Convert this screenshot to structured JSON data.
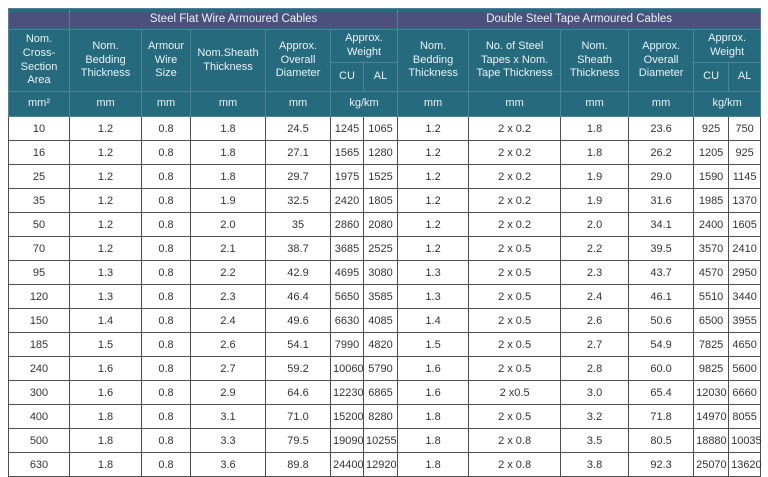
{
  "colors": {
    "teal": "#266a7e",
    "purple": "#4d4f7d",
    "hdr-border": "#4e8294",
    "hdr-text": "#e9f2f5",
    "body-border": "#4f4f4f",
    "body-text": "#333333",
    "page-bg": "#ffffff"
  },
  "table": {
    "groups": [
      {
        "title": "Steel Flat Wire Armoured Cables"
      },
      {
        "title": "Double Steel Tape Armoured Cables"
      }
    ],
    "columns": [
      "Nom. Cross-Section Area",
      "Nom. Bedding Thickness",
      "Armour Wire Size",
      "Nom.Sheath Thickness",
      "Approx. Overall Diameter",
      "Nom. Bedding Thickness",
      "No. of Steel Tapes x Nom. Tape Thickness",
      "Nom. Sheath Thickness",
      "Approx. Overall Diameter"
    ],
    "weight": {
      "label": "Approx. Weight",
      "cu": "CU",
      "al": "AL"
    },
    "units": [
      "mm²",
      "mm",
      "mm",
      "mm",
      "mm",
      "kg/km",
      "mm",
      "mm",
      "mm",
      "mm",
      "kg/km"
    ],
    "rows": [
      [
        "10",
        "1.2",
        "0.8",
        "1.8",
        "24.5",
        "1245",
        "1065",
        "1.2",
        "2 x 0.2",
        "1.8",
        "23.6",
        "925",
        "750"
      ],
      [
        "16",
        "1.2",
        "0.8",
        "1.8",
        "27.1",
        "1565",
        "1280",
        "1.2",
        "2 x 0.2",
        "1.8",
        "26.2",
        "1205",
        "925"
      ],
      [
        "25",
        "1.2",
        "0.8",
        "1.8",
        "29.7",
        "1975",
        "1525",
        "1.2",
        "2 x 0.2",
        "1.9",
        "29.0",
        "1590",
        "1145"
      ],
      [
        "35",
        "1.2",
        "0.8",
        "1.9",
        "32.5",
        "2420",
        "1805",
        "1.2",
        "2 x 0.2",
        "1.9",
        "31.6",
        "1985",
        "1370"
      ],
      [
        "50",
        "1.2",
        "0.8",
        "2.0",
        "35",
        "2860",
        "2080",
        "1.2",
        "2 x 0.2",
        "2.0",
        "34.1",
        "2400",
        "1605"
      ],
      [
        "70",
        "1.2",
        "0.8",
        "2.1",
        "38.7",
        "3685",
        "2525",
        "1.2",
        "2 x 0.5",
        "2.2",
        "39.5",
        "3570",
        "2410"
      ],
      [
        "95",
        "1.3",
        "0.8",
        "2.2",
        "42.9",
        "4695",
        "3080",
        "1.3",
        "2 x 0.5",
        "2.3",
        "43.7",
        "4570",
        "2950"
      ],
      [
        "120",
        "1.3",
        "0.8",
        "2.3",
        "46.4",
        "5650",
        "3585",
        "1.3",
        "2 x 0.5",
        "2.4",
        "46.1",
        "5510",
        "3440"
      ],
      [
        "150",
        "1.4",
        "0.8",
        "2.4",
        "49.6",
        "6630",
        "4085",
        "1.4",
        "2 x 0.5",
        "2.6",
        "50.6",
        "6500",
        "3955"
      ],
      [
        "185",
        "1.5",
        "0.8",
        "2.6",
        "54.1",
        "7990",
        "4820",
        "1.5",
        "2 x 0.5",
        "2.7",
        "54.9",
        "7825",
        "4650"
      ],
      [
        "240",
        "1.6",
        "0.8",
        "2.7",
        "59.2",
        "10060",
        "5790",
        "1.6",
        "2 x 0.5",
        "2.8",
        "60.0",
        "9825",
        "5600"
      ],
      [
        "300",
        "1.6",
        "0.8",
        "2.9",
        "64.6",
        "12230",
        "6865",
        "1.6",
        "2 x0.5",
        "3.0",
        "65.4",
        "12030",
        "6660"
      ],
      [
        "400",
        "1.8",
        "0.8",
        "3.1",
        "71.0",
        "15200",
        "8280",
        "1.8",
        "2 x 0.5",
        "3.2",
        "71.8",
        "14970",
        "8055"
      ],
      [
        "500",
        "1.8",
        "0.8",
        "3.3",
        "79.5",
        "19090",
        "10255",
        "1.8",
        "2 x 0.8",
        "3.5",
        "80.5",
        "18880",
        "10035"
      ],
      [
        "630",
        "1.8",
        "0.8",
        "3.6",
        "89.8",
        "24400",
        "12920",
        "1.8",
        "2 x 0.8",
        "3.8",
        "92.3",
        "25070",
        "13620"
      ]
    ]
  }
}
